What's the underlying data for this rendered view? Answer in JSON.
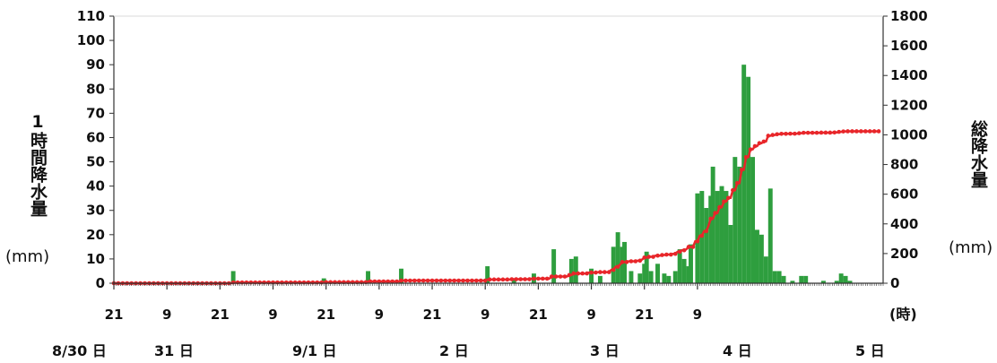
{
  "left_axis_label": "1時間降水量",
  "left_axis_unit": "(mm)",
  "right_axis_label": "総降水量",
  "right_axis_unit": "(mm)",
  "x_unit_label": "(時)",
  "day_labels": [
    "8/30 日",
    "31 日",
    "9/1 日",
    "2 日",
    "3 日",
    "4 日",
    "5 日"
  ],
  "colors": {
    "bars": "#2e9e3e",
    "cumulative": "#e8262a",
    "axis": "#333333",
    "grid": "#d8d8d8"
  },
  "chart_data": {
    "type": "bar",
    "title": "",
    "x_description": "hourly, 8/30 21時 to 9/5 12時",
    "x_ticks": [
      "21",
      "9",
      "21",
      "9",
      "21",
      "9",
      "21",
      "9",
      "21",
      "9",
      "21",
      "9"
    ],
    "y_left": {
      "label": "1時間降水量",
      "unit": "(mm)",
      "lim": [
        0,
        110
      ],
      "ticks": [
        0,
        10,
        20,
        30,
        40,
        50,
        60,
        70,
        80,
        90,
        100,
        110
      ]
    },
    "y_right": {
      "label": "総降水量",
      "unit": "(mm)",
      "lim": [
        0,
        1800
      ],
      "ticks": [
        0,
        200,
        400,
        600,
        800,
        1000,
        1200,
        1400,
        1600,
        1800
      ]
    },
    "grid": false,
    "series": [
      {
        "name": "1時間降水量",
        "type": "bar",
        "axis": "left",
        "values": [
          0,
          0,
          0,
          0,
          0,
          0,
          0,
          0,
          0,
          0,
          0,
          0,
          0,
          0,
          0,
          0,
          0,
          0,
          0,
          0,
          0,
          0,
          0,
          0,
          0,
          0,
          0,
          0,
          0,
          0,
          0,
          0,
          0,
          0,
          0,
          0,
          0,
          0,
          0,
          0,
          0,
          0,
          0,
          0,
          0,
          0,
          0,
          0,
          0,
          0,
          0,
          0,
          0,
          0,
          5,
          0,
          0,
          0,
          0,
          0,
          0,
          0,
          0,
          0,
          0,
          0,
          0,
          0,
          0,
          0,
          0,
          0,
          0,
          0,
          0,
          0,
          0,
          0,
          0,
          0,
          0,
          0,
          0,
          0,
          0,
          0,
          0,
          0,
          0,
          0,
          0,
          0,
          0,
          0,
          0,
          2,
          0,
          0,
          0,
          0,
          0,
          0,
          0,
          0,
          0,
          0,
          0,
          0,
          0,
          0,
          0,
          0,
          0,
          0,
          0,
          5,
          0,
          0,
          0,
          0,
          0,
          0,
          0,
          0,
          0,
          0,
          0,
          0,
          0,
          0,
          6,
          0,
          0,
          0,
          0,
          0,
          0,
          0,
          0,
          0,
          0,
          0,
          0,
          0,
          0,
          0,
          0,
          0,
          0,
          0,
          0,
          0,
          0,
          0,
          0,
          0,
          0,
          0,
          0,
          0,
          0,
          0,
          0,
          0,
          0,
          0,
          0,
          0,
          0,
          7,
          0,
          0,
          0,
          0,
          0,
          0,
          0,
          0,
          0,
          0,
          0,
          2,
          0,
          0,
          0,
          0,
          0,
          0,
          0,
          0,
          4,
          0,
          0,
          0,
          0,
          0,
          0,
          0,
          0,
          14,
          0,
          0,
          0,
          0,
          0,
          0,
          0,
          10,
          0,
          11,
          0,
          0,
          0,
          0,
          0,
          0,
          6,
          0,
          0,
          0,
          3,
          0,
          0,
          0,
          0,
          0,
          15,
          0,
          21,
          0,
          15,
          17,
          0,
          0,
          5,
          0,
          0,
          0,
          4,
          0,
          8,
          13,
          0,
          5,
          0,
          0,
          8,
          0,
          0,
          4,
          0,
          3,
          0,
          0,
          5,
          0,
          14,
          0,
          10,
          0,
          7,
          16,
          0,
          0,
          37,
          0,
          38,
          0,
          31,
          0,
          36,
          48,
          0,
          38,
          0,
          40,
          0,
          38,
          0,
          24,
          0,
          52,
          0,
          48,
          0,
          90,
          0,
          85,
          0,
          52,
          0,
          22,
          0,
          20,
          0,
          11,
          0,
          39,
          0,
          5,
          0,
          5,
          0,
          3,
          0,
          0,
          0,
          1,
          0,
          0,
          0,
          3,
          0,
          3,
          0,
          0,
          0,
          0,
          0,
          0,
          0,
          1,
          0,
          0,
          0,
          0,
          0,
          1,
          0,
          4,
          0,
          3,
          0,
          1,
          0,
          0,
          0,
          0,
          0,
          0,
          0,
          0,
          0,
          0,
          0,
          0,
          0,
          0,
          0
        ]
      },
      {
        "name": "総降水量",
        "type": "line",
        "axis": "right",
        "values": [
          0,
          0,
          0,
          0,
          0,
          0,
          0,
          0,
          0,
          0,
          0,
          0,
          0,
          0,
          0,
          0,
          0,
          0,
          0,
          0,
          0,
          0,
          0,
          0,
          0,
          0,
          0,
          0,
          0,
          0,
          0,
          0,
          0,
          0,
          0,
          0,
          0,
          0,
          0,
          0,
          0,
          0,
          0,
          0,
          0,
          0,
          0,
          0,
          0,
          0,
          0,
          0,
          0,
          0,
          5,
          5,
          5,
          5,
          5,
          5,
          5,
          5,
          5,
          5,
          5,
          5,
          5,
          5,
          5,
          5,
          5,
          5,
          5,
          5,
          5,
          5,
          5,
          5,
          5,
          5,
          5,
          5,
          5,
          5,
          5,
          5,
          5,
          5,
          5,
          5,
          5,
          5,
          5,
          5,
          5,
          7,
          7,
          7,
          7,
          7,
          7,
          7,
          7,
          7,
          7,
          7,
          7,
          7,
          7,
          7,
          7,
          7,
          7,
          7,
          7,
          12,
          12,
          12,
          12,
          12,
          12,
          12,
          12,
          12,
          12,
          12,
          12,
          12,
          12,
          12,
          18,
          18,
          18,
          18,
          18,
          18,
          18,
          18,
          18,
          18,
          18,
          18,
          18,
          18,
          18,
          18,
          18,
          18,
          18,
          18,
          18,
          18,
          18,
          18,
          18,
          18,
          18,
          18,
          18,
          18,
          18,
          18,
          18,
          18,
          18,
          18,
          18,
          18,
          18,
          25,
          25,
          25,
          25,
          25,
          25,
          25,
          25,
          25,
          25,
          25,
          27,
          27,
          27,
          27,
          27,
          27,
          27,
          27,
          27,
          31,
          31,
          31,
          31,
          31,
          31,
          31,
          31,
          31,
          45,
          45,
          45,
          45,
          45,
          45,
          45,
          45,
          55,
          55,
          66,
          66,
          66,
          66,
          66,
          66,
          66,
          72,
          72,
          72,
          72,
          75,
          75,
          75,
          75,
          75,
          75,
          90,
          90,
          111,
          111,
          126,
          143,
          143,
          143,
          148,
          148,
          148,
          148,
          152,
          152,
          160,
          173,
          173,
          178,
          178,
          178,
          186,
          186,
          186,
          190,
          190,
          193,
          193,
          193,
          198,
          198,
          212,
          212,
          222,
          222,
          229,
          245,
          245,
          245,
          282,
          282,
          320,
          320,
          351,
          351,
          387,
          435,
          435,
          473,
          473,
          513,
          513,
          551,
          551,
          575,
          575,
          627,
          627,
          675,
          675,
          765,
          765,
          850,
          850,
          902,
          902,
          924,
          924,
          944,
          944,
          955,
          955,
          994,
          994,
          999,
          999,
          1004,
          1004,
          1007,
          1007,
          1007,
          1007,
          1008,
          1008,
          1008,
          1008,
          1011,
          1011,
          1014,
          1014,
          1014,
          1014,
          1014,
          1014,
          1014,
          1014,
          1015,
          1015,
          1015,
          1015,
          1015,
          1015,
          1016,
          1016,
          1020,
          1020,
          1023,
          1023,
          1024,
          1024,
          1024,
          1024,
          1024,
          1024,
          1024,
          1024,
          1024,
          1024,
          1024,
          1024,
          1024,
          1024,
          1024
        ]
      }
    ]
  }
}
